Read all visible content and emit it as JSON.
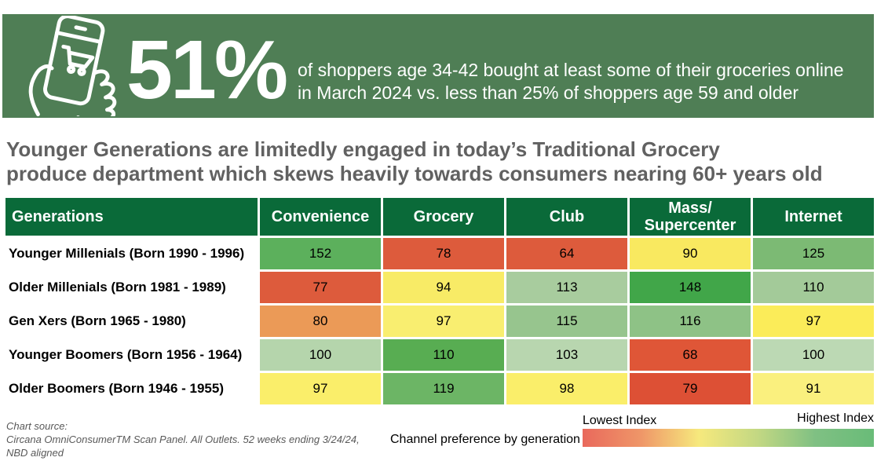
{
  "banner": {
    "bg_color": "#4F7E55",
    "icon": "hand-holding-phone-shopping-cart-icon",
    "stat_value": "51%",
    "description_line1": "of shoppers age 34-42 bought at least some of their groceries online",
    "description_line2": "in March 2024 vs. less than 25% of shoppers age 59 and older"
  },
  "headline": {
    "line1": "Younger Generations are limitedly engaged in today’s Traditional Grocery",
    "line2": "produce department which skews heavily towards consumers nearing 60+ years old"
  },
  "chart_data": {
    "type": "heatmap",
    "title": "Younger Generations are limitedly engaged in today’s Traditional Grocery produce department which skews heavily towards consumers nearing 60+ years old",
    "header_bg": "#0A6A39",
    "row_header": "Generations",
    "columns": [
      "Convenience",
      "Grocery",
      "Club",
      "Mass/\nSupercenter",
      "Internet"
    ],
    "rows": [
      {
        "label": "Younger Millenials (Born 1990 - 1996)",
        "values": [
          152,
          78,
          64,
          90,
          125
        ],
        "colors": [
          "#5CB05C",
          "#DD5B3C",
          "#DD5B3C",
          "#F9E960",
          "#7CBA74"
        ]
      },
      {
        "label": "Older Millenials (Born 1981 - 1989)",
        "values": [
          77,
          94,
          113,
          148,
          110
        ],
        "colors": [
          "#DD5B3C",
          "#F8EB66",
          "#A8CC9E",
          "#41A649",
          "#A3CA99"
        ]
      },
      {
        "label": "Gen Xers (Born 1965 - 1980)",
        "values": [
          80,
          97,
          115,
          116,
          97
        ],
        "colors": [
          "#EB9A57",
          "#F9EE70",
          "#97C58E",
          "#8EC286",
          "#FBEC59"
        ]
      },
      {
        "label": "Younger Boomers (Born 1956 - 1964)",
        "values": [
          100,
          110,
          103,
          68,
          100
        ],
        "colors": [
          "#B5D5AC",
          "#58AD52",
          "#B8D6AF",
          "#DF5637",
          "#BCD9B4"
        ]
      },
      {
        "label": "Older Boomers (Born 1946 - 1955)",
        "values": [
          97,
          119,
          98,
          79,
          91
        ],
        "colors": [
          "#FAEE6A",
          "#6CB565",
          "#FAEE6A",
          "#DD5035",
          "#FAF07E"
        ]
      }
    ],
    "legend": {
      "low_label": "Lowest Index",
      "high_label": "Highest Index",
      "gradient_stops": [
        "#E9695C",
        "#EF9668",
        "#F6E97D",
        "#C3D883",
        "#7FC083",
        "#69BC78"
      ]
    }
  },
  "footer": {
    "source_line1": "Chart source:",
    "source_line2": "Circana OmniConsumerTM Scan Panel. All Outlets. 52 weeks ending 3/24/24,",
    "source_line3": "NBD aligned",
    "note": "Channel preference by generation >"
  }
}
